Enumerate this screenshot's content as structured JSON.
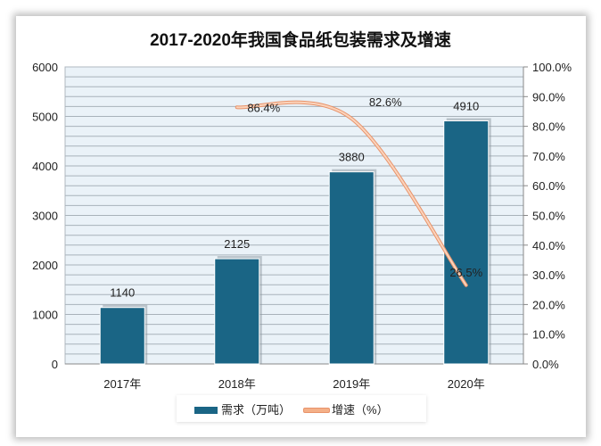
{
  "chart_data": {
    "type": "bar",
    "title": "2017-2020年我国食品纸包装需求及增速",
    "categories": [
      "2017年",
      "2018年",
      "2019年",
      "2020年"
    ],
    "series": [
      {
        "name": "需求（万吨）",
        "type": "bar",
        "axis": "left",
        "values": [
          1140,
          2125,
          3880,
          4910
        ],
        "labels": [
          "1140",
          "2125",
          "3880",
          "4910"
        ],
        "color": "#1a6585"
      },
      {
        "name": "增速（%）",
        "type": "line",
        "axis": "right",
        "values": [
          null,
          86.4,
          82.6,
          26.5
        ],
        "labels": [
          "",
          "86.4%",
          "82.6%",
          "26.5%"
        ],
        "color": "#f4b088"
      }
    ],
    "ylim": [
      0,
      6000
    ],
    "yticks": [
      "0",
      "1000",
      "2000",
      "3000",
      "4000",
      "5000",
      "6000"
    ],
    "y2lim": [
      0,
      100
    ],
    "y2ticks": [
      "0.0%",
      "10.0%",
      "20.0%",
      "30.0%",
      "40.0%",
      "50.0%",
      "60.0%",
      "70.0%",
      "80.0%",
      "90.0%",
      "100.0%"
    ],
    "grid": true,
    "legend": "bottom"
  }
}
